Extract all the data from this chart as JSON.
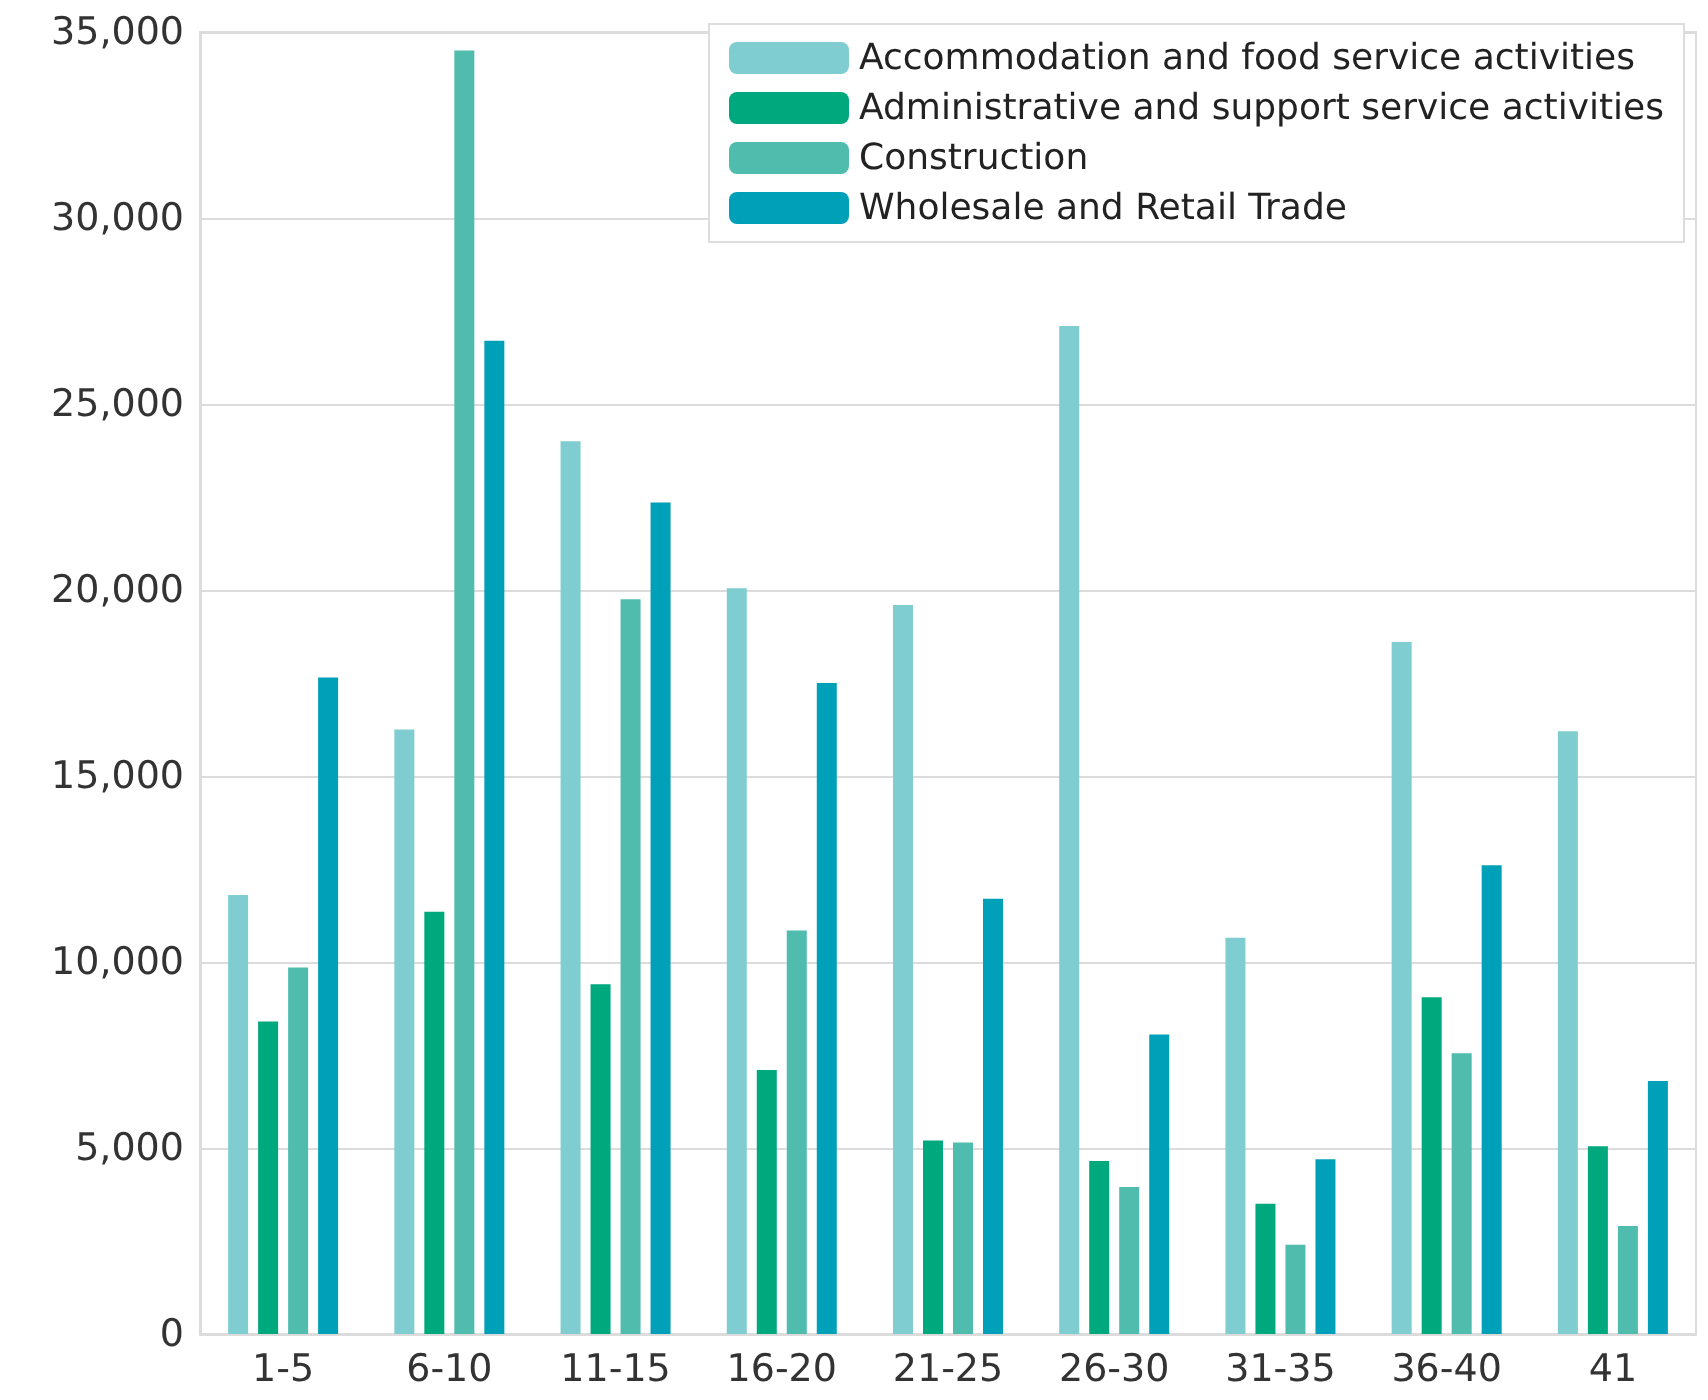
{
  "chart_data": {
    "type": "bar",
    "categories": [
      "1-5",
      "6-10",
      "11-15",
      "16-20",
      "21-25",
      "26-30",
      "31-35",
      "36-40",
      "41"
    ],
    "series": [
      {
        "name": "Accommodation and food service activities",
        "color": "#7fcdd0",
        "values": [
          11800,
          16250,
          24000,
          20050,
          19600,
          27100,
          10650,
          18600,
          16200
        ]
      },
      {
        "name": "Administrative and support service activities",
        "color": "#00a87e",
        "values": [
          8400,
          11350,
          9400,
          7100,
          5200,
          4650,
          3500,
          9050,
          5050
        ]
      },
      {
        "name": "Construction",
        "color": "#4fbcae",
        "values": [
          9850,
          34500,
          19750,
          10850,
          5150,
          3950,
          2400,
          7550,
          2900
        ]
      },
      {
        "name": "Wholesale and Retail Trade",
        "color": "#00a0b8",
        "values": [
          17650,
          26700,
          22350,
          17500,
          11700,
          8050,
          4700,
          12600,
          6800
        ]
      }
    ],
    "ylim": [
      0,
      35000
    ],
    "yticks": [
      0,
      {
        "value": 5000,
        "label": "5,000"
      },
      {
        "value": 10000,
        "label": "10,000"
      },
      {
        "value": 15000,
        "label": "15,000"
      },
      {
        "value": 20000,
        "label": "20,000"
      },
      {
        "value": 25000,
        "label": "25,000"
      },
      {
        "value": 30000,
        "label": "30,000"
      },
      {
        "value": 35000,
        "label": "35,000"
      }
    ],
    "grid": "y",
    "legend": "top right"
  }
}
